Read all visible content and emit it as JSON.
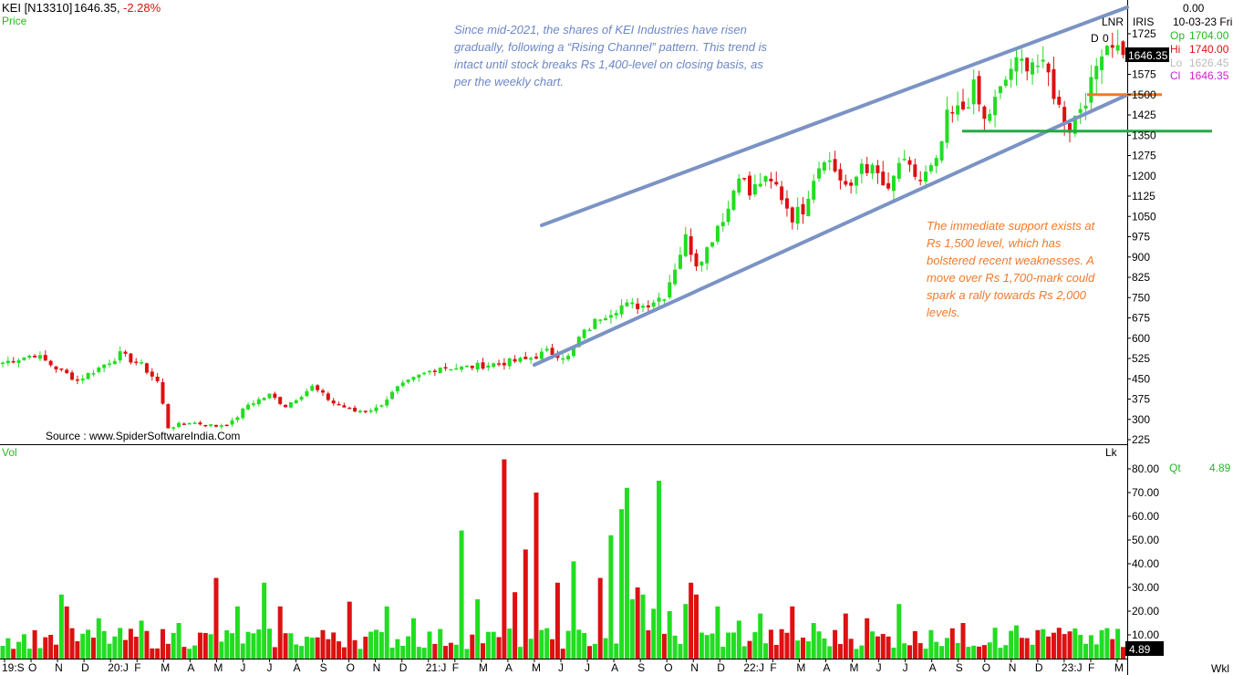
{
  "header": {
    "symbol": "KEI [N13310]",
    "last": "1646.35,",
    "change": "-2.28%",
    "pane_label": "Price"
  },
  "ohlc_panel": {
    "top_value": "0.00",
    "lnr": "LNR",
    "iris": "IRIS",
    "date": "10-03-23 Fri",
    "d_label": "D",
    "d_value": "0",
    "open_label": "Op",
    "open": "1704.00",
    "high_label": "Hi",
    "high": "1740.00",
    "low_label": "Lo",
    "low": "1626.45",
    "close_label": "Cl",
    "close": "1646.35",
    "price_tag": "1646.35"
  },
  "volume_panel": {
    "label": "Vol",
    "unit": "Lk",
    "qt_label": "Qt",
    "qt_value": "4.89",
    "tag": "4.89"
  },
  "timeframe": "Wkl",
  "annotations": {
    "top": "Since mid-2021, the shares of KEI Industries have risen gradually, following a “Rising Channel” pattern. This trend is intact until stock breaks Rs 1,400-level on closing basis, as per the weekly chart.",
    "right": "The immediate support exists at Rs 1,500 level, which has bolstered recent weaknesses. A move over Rs 1,700-mark could spark a rally towards Rs 2,000 levels.",
    "source": "Source : www.SpiderSoftwareIndia.Com"
  },
  "colors": {
    "up": "#22dd22",
    "down": "#dd1111",
    "channel": "#7b93c4",
    "support_orange": "#f07a2a",
    "support_green": "#22aa44",
    "note_blue": "#6b87c7",
    "note_orange": "#f07a2a",
    "price_tag_bg": "#000000"
  },
  "chart_data": [
    {
      "type": "candlestick",
      "title": "KEI [N13310]",
      "ylabel": "Price",
      "ylim": [
        225,
        1800
      ],
      "y_ticks": [
        "1725",
        "1650",
        "1575",
        "1500",
        "1425",
        "1350",
        "1275",
        "1200",
        "1125",
        "1050",
        "975",
        "900",
        "825",
        "750",
        "675",
        "600",
        "525",
        "450",
        "375",
        "300",
        "225"
      ],
      "x_ticks": [
        "19:S",
        "O",
        "N",
        "D",
        "20:J",
        "F",
        "M",
        "A",
        "M",
        "J",
        "J",
        "A",
        "S",
        "O",
        "N",
        "D",
        "21:J",
        "F",
        "M",
        "A",
        "M",
        "J",
        "J",
        "A",
        "S",
        "O",
        "N",
        "D",
        "22:J",
        "F",
        "M",
        "A",
        "M",
        "J",
        "J",
        "A",
        "S",
        "O",
        "N",
        "D",
        "23:J",
        "F",
        "M"
      ],
      "waypoints_close": [
        [
          0,
          510
        ],
        [
          6,
          540
        ],
        [
          10,
          490
        ],
        [
          14,
          445
        ],
        [
          18,
          490
        ],
        [
          22,
          540
        ],
        [
          26,
          500
        ],
        [
          29,
          440
        ],
        [
          31,
          270
        ],
        [
          35,
          290
        ],
        [
          40,
          275
        ],
        [
          43,
          290
        ],
        [
          46,
          355
        ],
        [
          50,
          390
        ],
        [
          53,
          350
        ],
        [
          58,
          420
        ],
        [
          62,
          360
        ],
        [
          66,
          330
        ],
        [
          70,
          340
        ],
        [
          74,
          415
        ],
        [
          78,
          460
        ],
        [
          82,
          495
        ],
        [
          86,
          490
        ],
        [
          90,
          500
        ],
        [
          94,
          510
        ],
        [
          98,
          520
        ],
        [
          102,
          550
        ],
        [
          106,
          530
        ],
        [
          108,
          600
        ],
        [
          112,
          680
        ],
        [
          116,
          720
        ],
        [
          120,
          720
        ],
        [
          124,
          760
        ],
        [
          128,
          970
        ],
        [
          130,
          880
        ],
        [
          132,
          930
        ],
        [
          134,
          1020
        ],
        [
          136,
          1080
        ],
        [
          138,
          1220
        ],
        [
          140,
          1130
        ],
        [
          142,
          1180
        ],
        [
          145,
          1160
        ],
        [
          148,
          1050
        ],
        [
          150,
          1080
        ],
        [
          152,
          1200
        ],
        [
          154,
          1280
        ],
        [
          157,
          1190
        ],
        [
          159,
          1140
        ],
        [
          161,
          1250
        ],
        [
          164,
          1200
        ],
        [
          166,
          1130
        ],
        [
          168,
          1250
        ],
        [
          172,
          1185
        ],
        [
          175,
          1240
        ],
        [
          177,
          1410
        ],
        [
          180,
          1450
        ],
        [
          182,
          1520
        ],
        [
          184,
          1400
        ],
        [
          187,
          1510
        ],
        [
          189,
          1600
        ],
        [
          193,
          1630
        ],
        [
          196,
          1570
        ],
        [
          198,
          1450
        ],
        [
          200,
          1380
        ],
        [
          202,
          1460
        ],
        [
          204,
          1530
        ],
        [
          206,
          1680
        ],
        [
          208,
          1700
        ],
        [
          210,
          1640
        ]
      ],
      "channel_upper": [
        [
          594,
          247
        ],
        [
          1236,
          8
        ]
      ],
      "channel_lower": [
        [
          586,
          400
        ],
        [
          1236,
          104
        ]
      ],
      "support_lines": [
        {
          "level": 1500,
          "color": "orange"
        },
        {
          "level": 1365,
          "color": "green"
        }
      ],
      "last_close": 1646.35
    },
    {
      "type": "bar",
      "ylabel": "Vol",
      "unit": "Lk",
      "ylim": [
        0,
        85
      ],
      "y_ticks": [
        "80.00",
        "70.00",
        "60.00",
        "50.00",
        "40.00",
        "30.00",
        "20.00",
        "10.00"
      ],
      "spikes": [
        [
          8,
          9
        ],
        [
          11,
          27
        ],
        [
          12,
          22
        ],
        [
          18,
          17
        ],
        [
          26,
          16
        ],
        [
          33,
          15
        ],
        [
          40,
          34
        ],
        [
          44,
          22
        ],
        [
          49,
          32
        ],
        [
          52,
          22
        ],
        [
          62,
          11
        ],
        [
          65,
          24
        ],
        [
          72,
          22
        ],
        [
          77,
          17
        ],
        [
          86,
          54
        ],
        [
          89,
          25
        ],
        [
          94,
          84
        ],
        [
          96,
          28
        ],
        [
          98,
          46
        ],
        [
          100,
          70
        ],
        [
          104,
          32
        ],
        [
          107,
          41
        ],
        [
          112,
          34
        ],
        [
          114,
          52
        ],
        [
          116,
          63
        ],
        [
          117,
          72
        ],
        [
          118,
          25
        ],
        [
          119,
          30
        ],
        [
          120,
          27
        ],
        [
          122,
          21
        ],
        [
          123,
          75
        ],
        [
          125,
          20
        ],
        [
          128,
          23
        ],
        [
          129,
          32
        ],
        [
          130,
          27
        ],
        [
          134,
          22
        ],
        [
          138,
          16
        ],
        [
          142,
          19
        ],
        [
          148,
          22
        ],
        [
          152,
          15
        ],
        [
          158,
          19
        ],
        [
          162,
          17
        ],
        [
          168,
          23
        ],
        [
          174,
          12
        ],
        [
          180,
          15
        ],
        [
          186,
          13
        ],
        [
          190,
          14
        ],
        [
          194,
          12
        ],
        [
          198,
          13
        ],
        [
          202,
          10
        ],
        [
          206,
          12
        ]
      ],
      "last_value": 4.89
    }
  ]
}
